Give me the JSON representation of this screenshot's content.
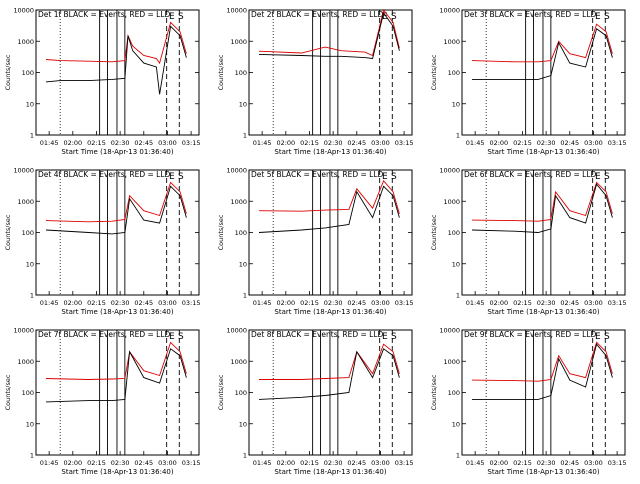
{
  "colors": {
    "events": "#000000",
    "lld": "#dd0000",
    "background": "#ffffff"
  },
  "shared": {
    "ylabel": "Counts/sec",
    "xlabel": "Start Time (18-Apr-13 01:36:40)",
    "xticks": [
      "01:45",
      "02:00",
      "02:15",
      "02:30",
      "02:45",
      "03:00",
      "03:15"
    ],
    "yticks": [
      "1",
      "10",
      "100",
      "1000",
      "10000"
    ],
    "ylim": [
      1,
      10000
    ],
    "yscale": "log",
    "xlim": [
      "01:36:40",
      "03:20:00"
    ],
    "dotted_marker": "01:52",
    "solid_markers": [
      "02:17",
      "02:22",
      "02:28",
      "02:33"
    ],
    "dashed_markers": [
      "02:59:30",
      "03:07:30"
    ],
    "flag_labels": [
      "E",
      "S"
    ]
  },
  "chart_data": [
    {
      "type": "line",
      "title": "Det 1f BLACK = Events, RED = LLD",
      "series": [
        {
          "name": "Events",
          "x": [
            "01:43",
            "01:52",
            "02:10",
            "02:25",
            "02:33",
            "02:35",
            "02:38",
            "02:45",
            "02:53",
            "02:55",
            "03:02",
            "03:08",
            "03:12"
          ],
          "y": [
            50,
            55,
            55,
            60,
            65,
            1500,
            500,
            200,
            150,
            20,
            3000,
            1500,
            300
          ]
        },
        {
          "name": "LLD",
          "x": [
            "01:43",
            "01:52",
            "02:10",
            "02:25",
            "02:33",
            "02:35",
            "02:38",
            "02:45",
            "02:53",
            "02:55",
            "03:02",
            "03:08",
            "03:12"
          ],
          "y": [
            260,
            240,
            230,
            220,
            240,
            1500,
            700,
            350,
            280,
            200,
            4000,
            2000,
            400
          ]
        }
      ]
    },
    {
      "type": "line",
      "title": "Det 2f BLACK = Events, RED = LLD",
      "series": [
        {
          "name": "Events",
          "x": [
            "01:43",
            "02:10",
            "02:25",
            "02:35",
            "02:50",
            "02:55",
            "03:02",
            "03:08",
            "03:12"
          ],
          "y": [
            380,
            350,
            330,
            330,
            300,
            280,
            8000,
            3000,
            500
          ]
        },
        {
          "name": "LLD",
          "x": [
            "01:43",
            "02:10",
            "02:25",
            "02:35",
            "02:50",
            "02:55",
            "03:02",
            "03:08",
            "03:12"
          ],
          "y": [
            480,
            420,
            650,
            500,
            450,
            350,
            10000,
            4000,
            600
          ]
        }
      ]
    },
    {
      "type": "line",
      "title": "Det 3f BLACK = Events, RED = LLD",
      "series": [
        {
          "name": "Events",
          "x": [
            "01:43",
            "02:10",
            "02:25",
            "02:33",
            "02:38",
            "02:45",
            "02:55",
            "03:02",
            "03:08",
            "03:12"
          ],
          "y": [
            60,
            60,
            60,
            80,
            900,
            200,
            150,
            2500,
            1500,
            300
          ]
        },
        {
          "name": "LLD",
          "x": [
            "01:43",
            "02:10",
            "02:25",
            "02:33",
            "02:38",
            "02:45",
            "02:55",
            "03:02",
            "03:08",
            "03:12"
          ],
          "y": [
            240,
            220,
            220,
            240,
            1000,
            400,
            300,
            3500,
            2000,
            400
          ]
        }
      ]
    },
    {
      "type": "line",
      "title": "Det 4f BLACK = Events, RED = LLD",
      "series": [
        {
          "name": "Events",
          "x": [
            "01:43",
            "02:10",
            "02:25",
            "02:33",
            "02:36",
            "02:45",
            "02:55",
            "03:02",
            "03:08",
            "03:12"
          ],
          "y": [
            120,
            100,
            90,
            100,
            1200,
            250,
            200,
            3000,
            1500,
            300
          ]
        },
        {
          "name": "LLD",
          "x": [
            "01:43",
            "02:10",
            "02:25",
            "02:33",
            "02:36",
            "02:45",
            "02:55",
            "03:02",
            "03:08",
            "03:12"
          ],
          "y": [
            240,
            220,
            230,
            260,
            1500,
            500,
            350,
            4000,
            2000,
            400
          ]
        }
      ]
    },
    {
      "type": "line",
      "title": "Det 5f BLACK = Events, RED = LLD",
      "series": [
        {
          "name": "Events",
          "x": [
            "01:43",
            "02:10",
            "02:25",
            "02:40",
            "02:45",
            "02:55",
            "03:02",
            "03:08",
            "03:12"
          ],
          "y": [
            100,
            120,
            140,
            180,
            2000,
            300,
            3000,
            1500,
            300
          ]
        },
        {
          "name": "LLD",
          "x": [
            "01:43",
            "02:10",
            "02:25",
            "02:40",
            "02:45",
            "02:55",
            "03:02",
            "03:08",
            "03:12"
          ],
          "y": [
            500,
            480,
            520,
            550,
            2500,
            600,
            4500,
            2000,
            400
          ]
        }
      ]
    },
    {
      "type": "line",
      "title": "Det 6f BLACK = Events, RED = LLD",
      "series": [
        {
          "name": "Events",
          "x": [
            "01:43",
            "02:10",
            "02:25",
            "02:33",
            "02:36",
            "02:45",
            "02:55",
            "03:02",
            "03:08",
            "03:12"
          ],
          "y": [
            120,
            110,
            100,
            130,
            1500,
            300,
            200,
            3500,
            1500,
            300
          ]
        },
        {
          "name": "LLD",
          "x": [
            "01:43",
            "02:10",
            "02:25",
            "02:33",
            "02:36",
            "02:45",
            "02:55",
            "03:02",
            "03:08",
            "03:12"
          ],
          "y": [
            250,
            240,
            230,
            260,
            2000,
            500,
            350,
            4000,
            2000,
            400
          ]
        }
      ]
    },
    {
      "type": "line",
      "title": "Det 7f BLACK = Events, RED = LLD",
      "series": [
        {
          "name": "Events",
          "x": [
            "01:43",
            "02:10",
            "02:25",
            "02:33",
            "02:36",
            "02:45",
            "02:55",
            "03:02",
            "03:08",
            "03:12"
          ],
          "y": [
            50,
            55,
            55,
            60,
            2000,
            300,
            200,
            2500,
            1500,
            300
          ]
        },
        {
          "name": "LLD",
          "x": [
            "01:43",
            "02:10",
            "02:25",
            "02:33",
            "02:36",
            "02:45",
            "02:55",
            "03:02",
            "03:08",
            "03:12"
          ],
          "y": [
            280,
            260,
            270,
            280,
            2000,
            500,
            350,
            4000,
            2000,
            400
          ]
        }
      ]
    },
    {
      "type": "line",
      "title": "Det 8f BLACK = Events, RED = LLD",
      "series": [
        {
          "name": "Events",
          "x": [
            "01:43",
            "02:10",
            "02:25",
            "02:40",
            "02:45",
            "02:55",
            "03:02",
            "03:08",
            "03:12"
          ],
          "y": [
            60,
            70,
            80,
            100,
            2000,
            300,
            2500,
            1500,
            300
          ]
        },
        {
          "name": "LLD",
          "x": [
            "01:43",
            "02:10",
            "02:25",
            "02:40",
            "02:45",
            "02:55",
            "03:02",
            "03:08",
            "03:12"
          ],
          "y": [
            260,
            260,
            280,
            300,
            2000,
            400,
            3500,
            2000,
            400
          ]
        }
      ]
    },
    {
      "type": "line",
      "title": "Det 9f BLACK = Events, RED = LLD",
      "series": [
        {
          "name": "Events",
          "x": [
            "01:43",
            "02:10",
            "02:25",
            "02:33",
            "02:38",
            "02:45",
            "02:55",
            "03:02",
            "03:08",
            "03:12"
          ],
          "y": [
            60,
            60,
            60,
            80,
            1200,
            250,
            150,
            3500,
            1500,
            300
          ]
        },
        {
          "name": "LLD",
          "x": [
            "01:43",
            "02:10",
            "02:25",
            "02:33",
            "02:38",
            "02:45",
            "02:55",
            "03:02",
            "03:08",
            "03:12"
          ],
          "y": [
            250,
            240,
            230,
            260,
            1500,
            400,
            300,
            4000,
            2000,
            400
          ]
        }
      ]
    }
  ]
}
